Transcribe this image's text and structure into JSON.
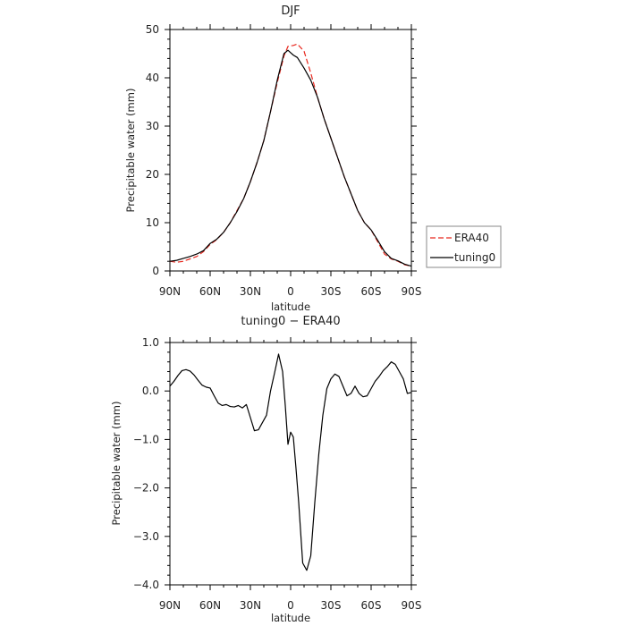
{
  "chart_data": [
    {
      "type": "line",
      "title": "DJF",
      "xlabel": "latitude",
      "ylabel": "Precipitable water (mm)",
      "xlim": [
        90,
        -90
      ],
      "ylim": [
        0,
        50
      ],
      "xticks": [
        90,
        60,
        30,
        0,
        -30,
        -60,
        -90
      ],
      "xtick_labels": [
        "90N",
        "60N",
        "30N",
        "0",
        "30S",
        "60S",
        "90S"
      ],
      "yticks": [
        0,
        10,
        20,
        30,
        40,
        50
      ],
      "ytick_labels": [
        "0",
        "10",
        "20",
        "30",
        "40",
        "50"
      ],
      "legend_position": "right-outside",
      "series": [
        {
          "name": "ERA40",
          "color": "#e8281e",
          "dash": "dashed",
          "x": [
            90,
            85,
            80,
            75,
            70,
            65,
            60,
            55,
            50,
            45,
            40,
            35,
            30,
            25,
            20,
            15,
            10,
            5,
            2,
            0,
            -2,
            -5,
            -10,
            -15,
            -20,
            -25,
            -30,
            -35,
            -40,
            -45,
            -50,
            -55,
            -60,
            -65,
            -70,
            -75,
            -80,
            -85,
            -90
          ],
          "y": [
            2.0,
            1.8,
            2.0,
            2.5,
            3.0,
            4.0,
            5.5,
            6.5,
            8.0,
            10.0,
            12.5,
            15.0,
            18.5,
            22.5,
            27.0,
            33.0,
            39.0,
            44.5,
            46.5,
            46.6,
            46.7,
            47.0,
            45.5,
            41.0,
            36.0,
            31.5,
            27.5,
            23.5,
            19.5,
            16.0,
            12.5,
            10.0,
            8.5,
            6.0,
            3.5,
            2.5,
            2.0,
            1.3,
            1.0
          ]
        },
        {
          "name": "tuning0",
          "color": "#000000",
          "dash": "solid",
          "x": [
            90,
            85,
            80,
            75,
            70,
            65,
            60,
            55,
            50,
            45,
            40,
            35,
            30,
            25,
            20,
            15,
            10,
            5,
            2,
            0,
            -2,
            -5,
            -10,
            -15,
            -20,
            -25,
            -30,
            -35,
            -40,
            -45,
            -50,
            -55,
            -60,
            -65,
            -70,
            -75,
            -80,
            -85,
            -90
          ],
          "y": [
            2.0,
            2.2,
            2.6,
            3.0,
            3.5,
            4.2,
            5.7,
            6.6,
            8.0,
            10.0,
            12.3,
            15.0,
            18.5,
            22.5,
            27.0,
            33.0,
            39.5,
            45.0,
            45.7,
            45.2,
            44.7,
            44.2,
            42.0,
            39.5,
            36.0,
            31.5,
            27.5,
            23.5,
            19.5,
            16.0,
            12.5,
            10.0,
            8.5,
            6.3,
            4.0,
            2.6,
            2.1,
            1.4,
            1.0
          ]
        }
      ]
    },
    {
      "type": "line",
      "title": "tuning0 − ERA40",
      "xlabel": "latitude",
      "ylabel": "Precipitable water (mm)",
      "xlim": [
        90,
        -90
      ],
      "ylim": [
        -4.0,
        1.0
      ],
      "xticks": [
        90,
        60,
        30,
        0,
        -30,
        -60,
        -90
      ],
      "xtick_labels": [
        "90N",
        "60N",
        "30N",
        "0",
        "30S",
        "60S",
        "90S"
      ],
      "yticks": [
        1.0,
        0.0,
        -1.0,
        -2.0,
        -3.0,
        -4.0
      ],
      "ytick_labels": [
        "1.0",
        "0.0",
        "−1.0",
        "−2.0",
        "−3.0",
        "−4.0"
      ],
      "series": [
        {
          "color": "#000000",
          "dash": "solid",
          "x": [
            90,
            87,
            84,
            81,
            78,
            75,
            72,
            69,
            66,
            63,
            60,
            57,
            54,
            51,
            48,
            45,
            42,
            39,
            36,
            33,
            30,
            27,
            24,
            21,
            18,
            15,
            12,
            9,
            6,
            4,
            2,
            0,
            -2,
            -4,
            -6,
            -9,
            -12,
            -15,
            -18,
            -21,
            -24,
            -27,
            -30,
            -33,
            -36,
            -39,
            -42,
            -45,
            -48,
            -51,
            -54,
            -57,
            -60,
            -63,
            -66,
            -69,
            -72,
            -75,
            -78,
            -81,
            -84,
            -87,
            -90
          ],
          "y": [
            0.1,
            0.2,
            0.32,
            0.42,
            0.44,
            0.41,
            0.33,
            0.22,
            0.12,
            0.08,
            0.06,
            -0.1,
            -0.25,
            -0.3,
            -0.28,
            -0.32,
            -0.33,
            -0.3,
            -0.35,
            -0.28,
            -0.55,
            -0.82,
            -0.8,
            -0.65,
            -0.5,
            0.0,
            0.37,
            0.76,
            0.4,
            -0.3,
            -1.1,
            -0.85,
            -0.95,
            -1.6,
            -2.3,
            -3.55,
            -3.7,
            -3.4,
            -2.3,
            -1.3,
            -0.5,
            0.05,
            0.25,
            0.35,
            0.3,
            0.1,
            -0.1,
            -0.05,
            0.1,
            -0.05,
            -0.12,
            -0.1,
            0.05,
            0.2,
            0.3,
            0.42,
            0.5,
            0.6,
            0.55,
            0.4,
            0.25,
            -0.05,
            -0.03
          ]
        }
      ]
    }
  ]
}
